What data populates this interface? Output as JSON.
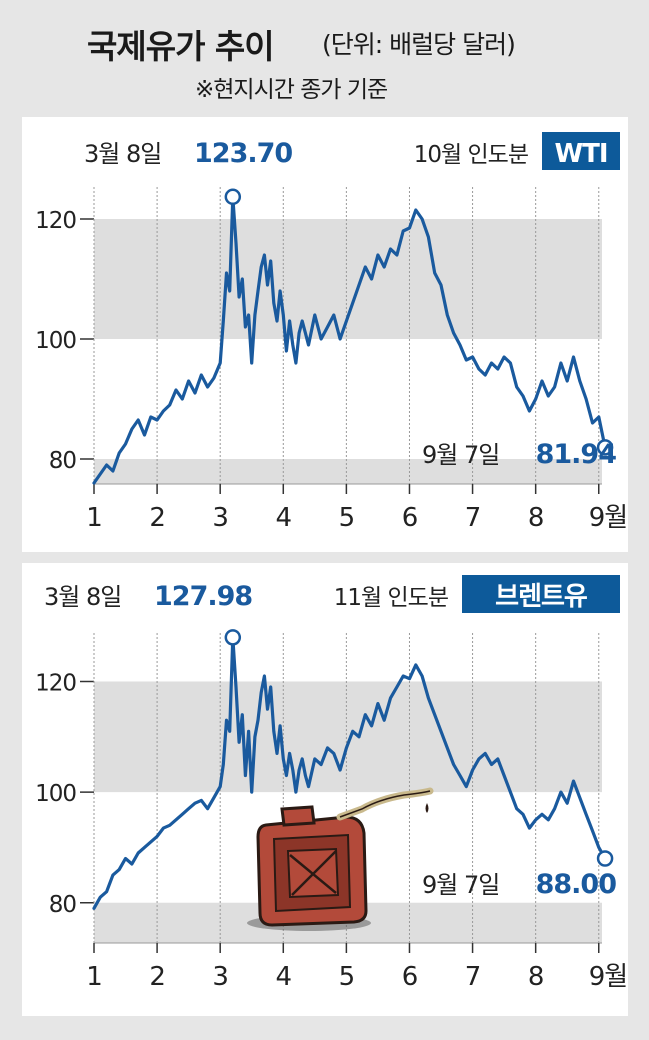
{
  "header": {
    "title": "국제유가 추이",
    "unit": "(단위: 배럴당 달러)",
    "note": "※현지시간 종가 기준"
  },
  "colors": {
    "line": "#1a5a9e",
    "value_text": "#1a5a9e",
    "badge_bg": "#0d5a9a",
    "band": "#dedede",
    "panel_bg": "#ffffff",
    "page_bg": "#e6e6e6"
  },
  "chart_data": [
    {
      "type": "line",
      "badge": "WTI",
      "contract": "10월 인도분",
      "peak": {
        "date_label": "3월 8일",
        "value_label": "123.70",
        "x": 3.2,
        "y": 123.7
      },
      "last": {
        "date_label": "9월 7일",
        "value_label": "81.94",
        "x": 9.1,
        "y": 81.94
      },
      "ylim": [
        74,
        132
      ],
      "xlim": [
        1,
        9.4
      ],
      "yticks": [
        "80",
        "100",
        "120"
      ],
      "xticks": [
        "1",
        "2",
        "3",
        "4",
        "5",
        "6",
        "7",
        "8",
        "9월"
      ],
      "x": [
        1.0,
        1.1,
        1.2,
        1.3,
        1.4,
        1.5,
        1.6,
        1.7,
        1.8,
        1.9,
        2.0,
        2.1,
        2.2,
        2.3,
        2.4,
        2.5,
        2.6,
        2.7,
        2.8,
        2.9,
        3.0,
        3.05,
        3.1,
        3.15,
        3.2,
        3.25,
        3.3,
        3.35,
        3.4,
        3.45,
        3.5,
        3.55,
        3.6,
        3.65,
        3.7,
        3.75,
        3.8,
        3.85,
        3.9,
        3.95,
        4.0,
        4.05,
        4.1,
        4.15,
        4.2,
        4.25,
        4.3,
        4.35,
        4.4,
        4.5,
        4.6,
        4.7,
        4.8,
        4.9,
        5.0,
        5.1,
        5.2,
        5.3,
        5.4,
        5.5,
        5.6,
        5.7,
        5.8,
        5.9,
        6.0,
        6.1,
        6.2,
        6.3,
        6.4,
        6.5,
        6.6,
        6.7,
        6.8,
        6.9,
        7.0,
        7.1,
        7.2,
        7.3,
        7.4,
        7.5,
        7.6,
        7.7,
        7.8,
        7.9,
        8.0,
        8.1,
        8.2,
        8.3,
        8.4,
        8.5,
        8.6,
        8.7,
        8.8,
        8.9,
        9.0,
        9.1
      ],
      "y": [
        76,
        77.5,
        79,
        78,
        81,
        82.5,
        85,
        86.5,
        84,
        87,
        86.5,
        88,
        89,
        91.5,
        90,
        93,
        91,
        94,
        92,
        93.5,
        96,
        103,
        111,
        108,
        123.7,
        116,
        107,
        110,
        102,
        104,
        96,
        104,
        108,
        112,
        114,
        109,
        113,
        106,
        103,
        108,
        104,
        98,
        103,
        99,
        96,
        101,
        103,
        101,
        99,
        104,
        100,
        102,
        104,
        100,
        103,
        106,
        109,
        112,
        110,
        114,
        112,
        115,
        114,
        118,
        118.5,
        121.5,
        120,
        117,
        111,
        109,
        104,
        101,
        99,
        96.5,
        97,
        95,
        94,
        96,
        95,
        97,
        96,
        92,
        90.5,
        88,
        90,
        93,
        90.5,
        92,
        96,
        93,
        97,
        93,
        90,
        86,
        87,
        81.94
      ]
    },
    {
      "type": "line",
      "badge": "브렌트유",
      "contract": "11월 인도분",
      "peak": {
        "date_label": "3월 8일",
        "value_label": "127.98",
        "x": 3.2,
        "y": 127.98
      },
      "last": {
        "date_label": "9월 7일",
        "value_label": "88.00",
        "x": 9.1,
        "y": 88.0
      },
      "ylim": [
        72,
        136
      ],
      "xlim": [
        1,
        9.4
      ],
      "yticks": [
        "80",
        "100",
        "120"
      ],
      "xticks": [
        "1",
        "2",
        "3",
        "4",
        "5",
        "6",
        "7",
        "8",
        "9월"
      ],
      "x": [
        1.0,
        1.1,
        1.2,
        1.3,
        1.4,
        1.5,
        1.6,
        1.7,
        1.8,
        1.9,
        2.0,
        2.1,
        2.2,
        2.3,
        2.4,
        2.5,
        2.6,
        2.7,
        2.8,
        2.9,
        3.0,
        3.05,
        3.1,
        3.15,
        3.2,
        3.25,
        3.3,
        3.35,
        3.4,
        3.45,
        3.5,
        3.55,
        3.6,
        3.65,
        3.7,
        3.75,
        3.8,
        3.85,
        3.9,
        3.95,
        4.0,
        4.05,
        4.1,
        4.15,
        4.2,
        4.25,
        4.3,
        4.35,
        4.4,
        4.5,
        4.6,
        4.7,
        4.8,
        4.9,
        5.0,
        5.1,
        5.2,
        5.3,
        5.4,
        5.5,
        5.6,
        5.7,
        5.8,
        5.9,
        6.0,
        6.1,
        6.2,
        6.3,
        6.4,
        6.5,
        6.6,
        6.7,
        6.8,
        6.9,
        7.0,
        7.1,
        7.2,
        7.3,
        7.4,
        7.5,
        7.6,
        7.7,
        7.8,
        7.9,
        8.0,
        8.1,
        8.2,
        8.3,
        8.4,
        8.5,
        8.6,
        8.7,
        8.8,
        8.9,
        9.0,
        9.1
      ],
      "y": [
        79,
        81,
        82,
        85,
        86,
        88,
        87,
        89,
        90,
        91,
        92,
        93.5,
        94,
        95,
        96,
        97,
        98,
        98.5,
        97,
        99,
        101,
        105,
        113,
        111,
        127.98,
        119,
        109,
        114,
        103,
        111,
        100,
        110,
        113,
        118,
        121,
        115,
        119,
        111,
        107,
        112,
        106,
        103,
        107,
        104,
        100,
        104,
        106,
        103,
        101,
        106,
        105,
        108,
        107,
        104,
        108,
        111,
        110,
        114,
        112,
        116,
        113,
        117,
        119,
        121,
        120.5,
        123,
        121,
        117,
        114,
        111,
        108,
        105,
        103,
        101,
        104,
        106,
        107,
        105,
        106,
        103,
        100,
        97,
        96,
        93.5,
        95,
        96,
        95,
        97,
        100,
        98,
        102,
        99,
        96,
        93,
        90,
        88.0
      ]
    }
  ]
}
